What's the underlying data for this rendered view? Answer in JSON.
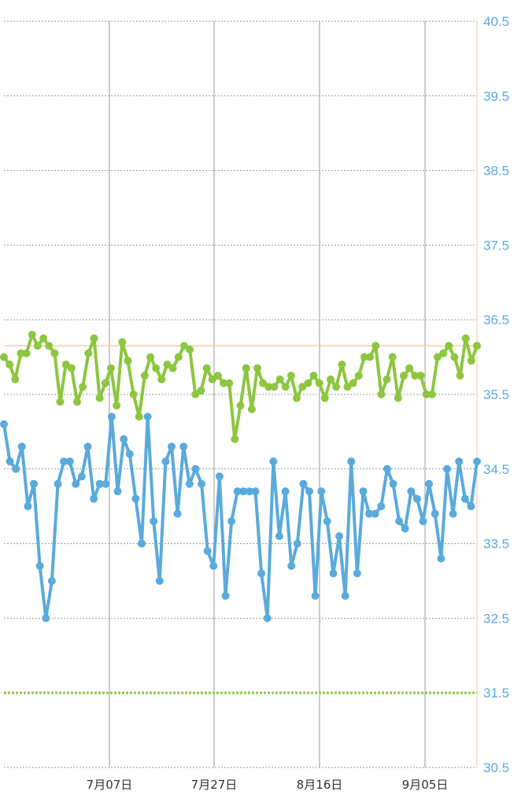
{
  "chart_data": {
    "type": "line",
    "ylim": [
      30.5,
      40.5
    ],
    "yticks": [
      "30.5",
      "31.5",
      "32.5",
      "33.5",
      "34.5",
      "35.5",
      "36.5",
      "37.5",
      "38.5",
      "39.5",
      "40.5"
    ],
    "xticks": [
      "7月07日",
      "7月27日",
      "8月16日",
      "9月05日"
    ],
    "grid": true,
    "colors": {
      "series_green": "#8dc63f",
      "series_blue": "#5aaadc",
      "tick_label": "#5aaadc",
      "reference_line": "#f5c6a5",
      "grid": "#9a9a9a"
    },
    "reference_lines": [
      {
        "value": 36.15,
        "color": "#f5c6a5",
        "style": "solid"
      },
      {
        "value": 31.5,
        "color": "#8dc63f",
        "style": "dotted"
      }
    ],
    "series": [
      {
        "color": "#8dc63f",
        "values": [
          36.0,
          35.9,
          35.7,
          36.05,
          36.05,
          36.3,
          36.15,
          36.25,
          36.15,
          36.05,
          35.4,
          35.9,
          35.85,
          35.4,
          35.6,
          36.05,
          36.25,
          35.45,
          35.65,
          35.85,
          35.35,
          36.2,
          35.95,
          35.5,
          35.2,
          35.75,
          36.0,
          35.85,
          35.7,
          35.9,
          35.85,
          36.0,
          36.15,
          36.1,
          35.5,
          35.55,
          35.85,
          35.7,
          35.75,
          35.65,
          35.65,
          34.9,
          35.35,
          35.85,
          35.3,
          35.85,
          35.65,
          35.6,
          35.6,
          35.7,
          35.6,
          35.75,
          35.45,
          35.6,
          35.65,
          35.75,
          35.65,
          35.45,
          35.7,
          35.6,
          35.9,
          35.6,
          35.65,
          35.75,
          36.0,
          36.0,
          36.15,
          35.5,
          35.7,
          36.0,
          35.45,
          35.75,
          35.85,
          35.75,
          35.75,
          35.5,
          35.5,
          36.0,
          36.05,
          36.15,
          36.0,
          35.75,
          36.25,
          35.95,
          36.15
        ]
      },
      {
        "color": "#5aaadc",
        "values": [
          35.1,
          34.6,
          34.5,
          34.8,
          34.0,
          34.3,
          33.2,
          32.5,
          33.0,
          34.3,
          34.6,
          34.6,
          34.3,
          34.4,
          34.8,
          34.1,
          34.3,
          34.3,
          35.2,
          34.2,
          34.9,
          34.7,
          34.1,
          33.5,
          35.2,
          33.8,
          33.0,
          34.6,
          34.8,
          33.9,
          34.8,
          34.3,
          34.5,
          34.3,
          33.4,
          33.2,
          34.4,
          32.8,
          33.8,
          34.2,
          34.2,
          34.2,
          34.2,
          33.1,
          32.5,
          34.6,
          33.6,
          34.2,
          33.2,
          33.5,
          34.3,
          34.2,
          32.8,
          34.2,
          33.8,
          33.1,
          33.6,
          32.8,
          34.6,
          33.1,
          34.2,
          33.9,
          33.9,
          34.0,
          34.5,
          34.3,
          33.8,
          33.7,
          34.2,
          34.1,
          33.8,
          34.3,
          33.9,
          33.3,
          34.5,
          33.9,
          34.6,
          34.1,
          34.0,
          34.6
        ]
      }
    ]
  }
}
